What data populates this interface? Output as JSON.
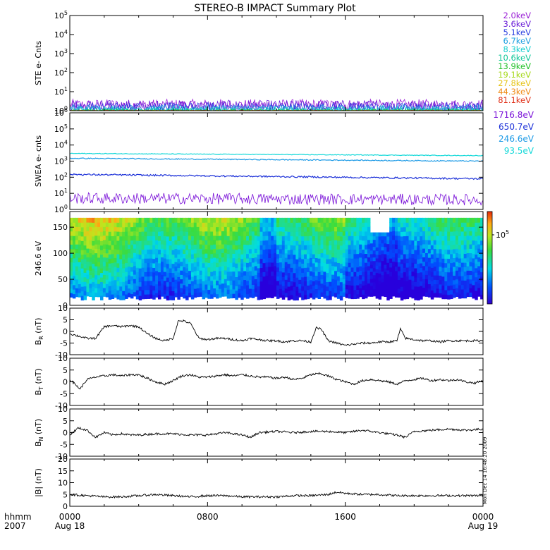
{
  "title": "STEREO-B IMPACT Summary Plot",
  "timestamp": "Mon Dec 14 16:48:20 2009",
  "x_axis": {
    "ticks": [
      {
        "t": 0,
        "label": "0000",
        "sub": "Aug 18"
      },
      {
        "t": 8,
        "label": "0800",
        "sub": ""
      },
      {
        "t": 16,
        "label": "1600",
        "sub": ""
      },
      {
        "t": 24,
        "label": "0000",
        "sub": "Aug 19"
      }
    ],
    "corner_top": "hhmm",
    "corner_bottom": "2007",
    "range": [
      0,
      24
    ]
  },
  "colors": {
    "2.0keV": "#9a1fd6",
    "3.6keV": "#6a1fd8",
    "5.1keV": "#2a3fe0",
    "6.7keV": "#1fa0e0",
    "8.3keV": "#19cfcf",
    "10.6keV": "#12c79a",
    "13.9keV": "#22c22a",
    "19.1keV": "#a6d91a",
    "27.8keV": "#e6c419",
    "44.3keV": "#ef8a14",
    "81.1keV": "#e0321a",
    "1716.8eV": "#7a12d8",
    "650.7eV": "#1a2fd8",
    "246.6eV": "#1c9ae6",
    "93.5eV": "#12d8d8"
  },
  "chart_data": [
    {
      "type": "line",
      "name": "ste",
      "ylabel": "STE e- Cnts",
      "yscale": "log",
      "ylim": [
        1,
        100000
      ],
      "yticks": [
        {
          "v": 1,
          "label": "10^0"
        },
        {
          "v": 10,
          "label": "10^1"
        },
        {
          "v": 100,
          "label": "10^2"
        },
        {
          "v": 1000,
          "label": "10^3"
        },
        {
          "v": 10000,
          "label": "10^4"
        },
        {
          "v": 100000,
          "label": "10^5"
        }
      ],
      "series": [
        {
          "name": "2.0keV",
          "level": 2.0,
          "noise": 0.3
        },
        {
          "name": "3.6keV",
          "level": 1.8,
          "noise": 0.3
        },
        {
          "name": "5.1keV",
          "level": 1.5,
          "noise": 0.25
        },
        {
          "name": "6.7keV",
          "level": 1.3,
          "noise": 0.2
        },
        {
          "name": "8.3keV",
          "level": 1.15,
          "noise": 0.15
        },
        {
          "name": "10.6keV",
          "level": 1.05,
          "noise": 0.1
        },
        {
          "name": "13.9keV",
          "level": 1.02,
          "noise": 0.05
        },
        {
          "name": "19.1keV",
          "level": 1.0,
          "noise": 0.03
        },
        {
          "name": "27.8keV",
          "level": 1.0,
          "noise": 0.02
        },
        {
          "name": "44.3keV",
          "level": 1.0,
          "noise": 0.02
        },
        {
          "name": "81.1keV",
          "level": 1.0,
          "noise": 0.02
        }
      ]
    },
    {
      "type": "line",
      "name": "swea",
      "ylabel": "SWEA e- cnts",
      "yscale": "log",
      "ylim": [
        1,
        1000000
      ],
      "yticks": [
        {
          "v": 1,
          "label": "10^0"
        },
        {
          "v": 10,
          "label": "10^1"
        },
        {
          "v": 100,
          "label": "10^2"
        },
        {
          "v": 1000,
          "label": "10^3"
        },
        {
          "v": 10000,
          "label": "10^4"
        },
        {
          "v": 100000,
          "label": "10^5"
        },
        {
          "v": 1000000,
          "label": "10^6"
        }
      ],
      "series": [
        {
          "name": "1716.8eV",
          "start": 5,
          "end": 4,
          "noise": 0.35
        },
        {
          "name": "650.7eV",
          "start": 150,
          "end": 80,
          "noise": 0.05
        },
        {
          "name": "246.6eV",
          "start": 1500,
          "end": 1000,
          "noise": 0.03
        },
        {
          "name": "93.5eV",
          "start": 3000,
          "end": 2200,
          "noise": 0.02
        }
      ]
    },
    {
      "type": "heatmap",
      "name": "pad",
      "ylabel": "246.6 eV",
      "ylim": [
        0,
        180
      ],
      "yticks": [
        {
          "v": 0,
          "label": "0"
        },
        {
          "v": 50,
          "label": "50"
        },
        {
          "v": 100,
          "label": "100"
        },
        {
          "v": 150,
          "label": "150"
        }
      ],
      "colorbar_label": "10^5"
    },
    {
      "type": "line",
      "name": "br",
      "ylabel": "B_R (nT)",
      "ylim": [
        -10,
        10
      ],
      "yticks": [
        {
          "v": -10,
          "label": "-10"
        },
        {
          "v": -5,
          "label": "-5"
        },
        {
          "v": 0,
          "label": "0"
        },
        {
          "v": 5,
          "label": "5"
        },
        {
          "v": 10,
          "label": "10"
        }
      ],
      "x": [
        0,
        0.5,
        1,
        1.5,
        2,
        2.5,
        3,
        3.5,
        4,
        4.5,
        5,
        5.5,
        6,
        6.3,
        6.6,
        7,
        7.5,
        8,
        8.5,
        9,
        9.5,
        10,
        10.5,
        11,
        11.5,
        12,
        12.5,
        13,
        13.5,
        14,
        14.3,
        14.6,
        15,
        15.5,
        16,
        16.5,
        17,
        17.5,
        18,
        18.5,
        19,
        19.2,
        19.5,
        20,
        20.5,
        21,
        21.5,
        22,
        22.5,
        23,
        23.5,
        24
      ],
      "y": [
        -1,
        -2,
        -3,
        -3,
        2,
        2.5,
        2,
        2.5,
        2,
        -1,
        -3,
        -4,
        -3,
        4.5,
        4.5,
        3.5,
        -3,
        -3.5,
        -3,
        -3,
        -3.5,
        -4,
        -3,
        -3.5,
        -4,
        -4,
        -4.5,
        -4,
        -4,
        -4.5,
        1.5,
        1,
        -4,
        -5,
        -6,
        -5.5,
        -5,
        -5,
        -4.5,
        -4.5,
        -4,
        1,
        -3,
        -3.5,
        -4,
        -4,
        -4.5,
        -4,
        -4,
        -4,
        -4,
        -4
      ]
    },
    {
      "type": "line",
      "name": "bt",
      "ylabel": "B_T (nT)",
      "ylim": [
        -10,
        10
      ],
      "yticks": [
        {
          "v": -10,
          "label": "-10"
        },
        {
          "v": -5,
          "label": "-5"
        },
        {
          "v": 0,
          "label": "0"
        },
        {
          "v": 5,
          "label": "5"
        },
        {
          "v": 10,
          "label": "10"
        }
      ],
      "x": [
        0,
        0.3,
        0.6,
        1,
        1.5,
        2,
        2.5,
        3,
        3.5,
        4,
        4.5,
        5,
        5.5,
        6,
        6.5,
        7,
        7.5,
        8,
        8.5,
        9,
        9.5,
        10,
        10.5,
        11,
        11.5,
        12,
        12.5,
        13,
        13.5,
        14,
        14.5,
        15,
        15.5,
        16,
        16.5,
        17,
        17.5,
        18,
        18.5,
        19,
        19.5,
        20,
        20.5,
        21,
        21.5,
        22,
        22.5,
        23,
        23.5,
        24
      ],
      "y": [
        1,
        -1,
        -3,
        1,
        2,
        2.5,
        3,
        2.5,
        3,
        3,
        1.5,
        0,
        -1,
        0.5,
        2.5,
        3,
        2,
        2,
        2.5,
        3,
        2.5,
        3,
        2.5,
        2,
        2,
        1.5,
        2,
        1,
        1.5,
        3,
        3.5,
        2.5,
        1,
        0,
        -1,
        0.5,
        1,
        0.5,
        0,
        -1,
        0.5,
        1,
        1.5,
        0.5,
        1,
        0.5,
        1,
        0,
        -0.5,
        0.5
      ]
    },
    {
      "type": "line",
      "name": "bn",
      "ylabel": "B_N (nT)",
      "ylim": [
        -10,
        10
      ],
      "yticks": [
        {
          "v": -10,
          "label": "-10"
        },
        {
          "v": -5,
          "label": "-5"
        },
        {
          "v": 0,
          "label": "0"
        },
        {
          "v": 5,
          "label": "5"
        },
        {
          "v": 10,
          "label": "10"
        }
      ],
      "x": [
        0,
        0.5,
        1,
        1.5,
        2,
        2.5,
        3,
        3.5,
        4,
        5,
        6,
        7,
        8,
        9,
        10,
        10.5,
        11,
        12,
        13,
        14,
        15,
        16,
        17,
        18,
        19,
        19.5,
        20,
        21,
        22,
        23,
        24
      ],
      "y": [
        -1,
        2,
        1,
        -2,
        0,
        -1,
        -0.5,
        -1,
        -1,
        -0.5,
        -0.5,
        -1,
        -1,
        0,
        -1,
        -2,
        0,
        0.5,
        0,
        0.5,
        0.5,
        0,
        1,
        0,
        -1,
        -2,
        0.5,
        1,
        1.5,
        1,
        1.5
      ]
    },
    {
      "type": "line",
      "name": "bmag",
      "ylabel": "|B| (nT)",
      "ylim": [
        0,
        20
      ],
      "yticks": [
        {
          "v": 0,
          "label": "0"
        },
        {
          "v": 5,
          "label": "5"
        },
        {
          "v": 10,
          "label": "10"
        },
        {
          "v": 15,
          "label": "15"
        },
        {
          "v": 20,
          "label": "20"
        }
      ],
      "x": [
        0,
        1,
        2,
        3,
        4,
        5,
        6,
        7,
        8,
        9,
        10,
        11,
        12,
        13,
        14,
        15,
        15.5,
        16,
        17,
        18,
        19,
        20,
        21,
        22,
        23,
        24
      ],
      "y": [
        5,
        4.5,
        4,
        4,
        4.5,
        5,
        4.5,
        4,
        4.5,
        4.5,
        4,
        4,
        4,
        4.5,
        4.5,
        5,
        6,
        5.5,
        5,
        5,
        4.5,
        4.5,
        4.5,
        4.5,
        4.5,
        4.5
      ]
    }
  ]
}
